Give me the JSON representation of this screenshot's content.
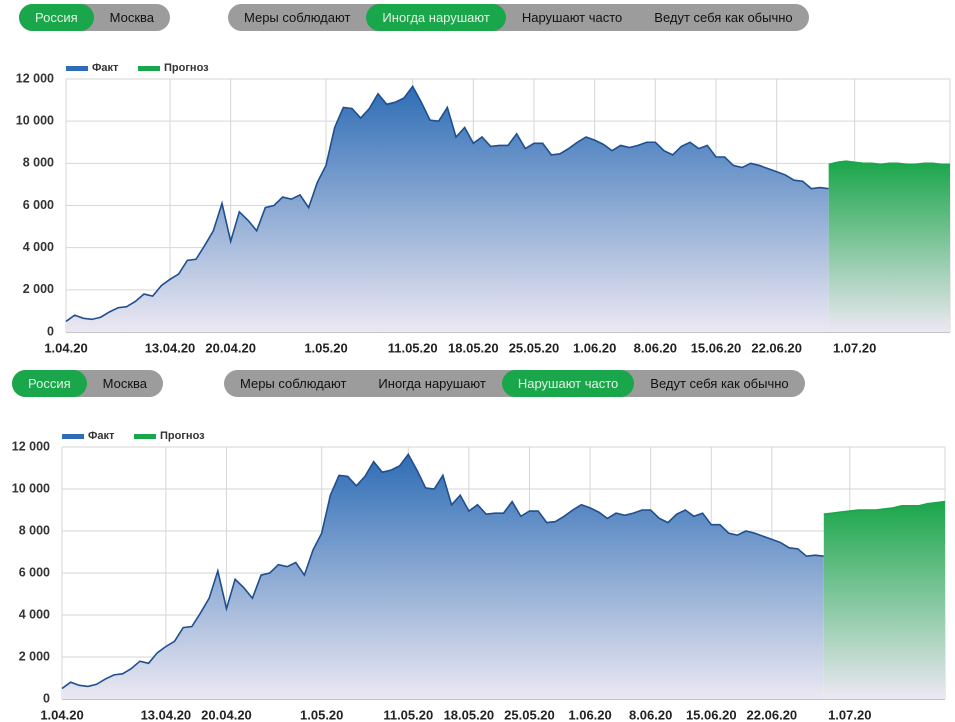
{
  "controls": [
    {
      "regions": [
        "Россия",
        "Москва"
      ],
      "region_active": 0,
      "scenarios": [
        "Меры соблюдают",
        "Иногда нарушают",
        "Нарушают часто",
        "Ведут себя как обычно"
      ],
      "scenario_active": 1
    },
    {
      "regions": [
        "Россия",
        "Москва"
      ],
      "region_active": 0,
      "scenarios": [
        "Меры соблюдают",
        "Иногда нарушают",
        "Нарушают часто",
        "Ведут себя как обычно"
      ],
      "scenario_active": 2
    }
  ],
  "chart_data": [
    {
      "type": "area",
      "categories": [
        "1.04.20",
        null,
        null,
        null,
        null,
        null,
        null,
        null,
        null,
        null,
        null,
        null,
        "13.04.20",
        null,
        null,
        null,
        null,
        null,
        null,
        "20.04.20",
        null,
        null,
        null,
        null,
        null,
        null,
        null,
        null,
        null,
        null,
        "1.05.20",
        null,
        null,
        null,
        null,
        null,
        null,
        null,
        null,
        null,
        "11.05.20",
        null,
        null,
        null,
        null,
        null,
        null,
        "18.05.20",
        null,
        null,
        null,
        null,
        null,
        null,
        "25.05.20",
        null,
        null,
        null,
        null,
        null,
        null,
        "1.06.20",
        null,
        null,
        null,
        null,
        null,
        null,
        "8.06.20",
        null,
        null,
        null,
        null,
        null,
        null,
        "15.06.20",
        null,
        null,
        null,
        null,
        null,
        null,
        "22.06.20",
        null,
        null,
        null,
        null,
        null,
        null,
        null,
        null,
        "1.07.20",
        null,
        null,
        null,
        null,
        null,
        null,
        null,
        null,
        null,
        null,
        null
      ],
      "series": [
        {
          "name": "Факт",
          "color": "#2e6db5",
          "values": [
            500,
            800,
            650,
            600,
            700,
            950,
            1150,
            1200,
            1450,
            1800,
            1700,
            2200,
            2500,
            2750,
            3400,
            3450,
            4100,
            4800,
            6100,
            4300,
            5700,
            5300,
            4800,
            5900,
            6000,
            6400,
            6300,
            6500,
            5900,
            7100,
            7900,
            9700,
            10650,
            10600,
            10150,
            10600,
            11300,
            10800,
            10900,
            11100,
            11650,
            10900,
            10050,
            10000,
            10650,
            9250,
            9700,
            8950,
            9250,
            8800,
            8850,
            8850,
            9400,
            8700,
            8950,
            8950,
            8400,
            8450,
            8700,
            9000,
            9250,
            9100,
            8900,
            8600,
            8850,
            8750,
            8850,
            9000,
            9000,
            8600,
            8400,
            8800,
            9000,
            8700,
            8850,
            8300,
            8300,
            7900,
            7800,
            8000,
            7900,
            7750,
            7600,
            7450,
            7200,
            7150,
            6800,
            6850,
            6800,
            null,
            null,
            null,
            null,
            null,
            null,
            null,
            null,
            null,
            null,
            null,
            null,
            null,
            null
          ]
        },
        {
          "name": "Прогноз",
          "color": "#1aa64a",
          "values": [
            null,
            null,
            null,
            null,
            null,
            null,
            null,
            null,
            null,
            null,
            null,
            null,
            null,
            null,
            null,
            null,
            null,
            null,
            null,
            null,
            null,
            null,
            null,
            null,
            null,
            null,
            null,
            null,
            null,
            null,
            null,
            null,
            null,
            null,
            null,
            null,
            null,
            null,
            null,
            null,
            null,
            null,
            null,
            null,
            null,
            null,
            null,
            null,
            null,
            null,
            null,
            null,
            null,
            null,
            null,
            null,
            null,
            null,
            null,
            null,
            null,
            null,
            null,
            null,
            null,
            null,
            null,
            null,
            null,
            null,
            null,
            null,
            null,
            null,
            null,
            null,
            null,
            null,
            null,
            null,
            null,
            null,
            null,
            null,
            null,
            null,
            null,
            null,
            7950,
            8050,
            8100,
            8050,
            8000,
            8000,
            7950,
            8000,
            8000,
            7950,
            7950,
            8000,
            8000,
            7950,
            7950
          ]
        }
      ],
      "ylim": [
        0,
        12000
      ],
      "yticks": [
        0,
        {
          "value": 2000,
          "label": "2 000"
        },
        {
          "value": 4000,
          "label": "4 000"
        },
        {
          "value": 6000,
          "label": "6 000"
        },
        {
          "value": 8000,
          "label": "8 000"
        },
        {
          "value": 10000,
          "label": "10 000"
        },
        {
          "value": 12000,
          "label": "12 000"
        }
      ],
      "grid": true,
      "legend": "upper left"
    },
    {
      "type": "area",
      "categories": [
        "1.04.20",
        null,
        null,
        null,
        null,
        null,
        null,
        null,
        null,
        null,
        null,
        null,
        "13.04.20",
        null,
        null,
        null,
        null,
        null,
        null,
        "20.04.20",
        null,
        null,
        null,
        null,
        null,
        null,
        null,
        null,
        null,
        null,
        "1.05.20",
        null,
        null,
        null,
        null,
        null,
        null,
        null,
        null,
        null,
        "11.05.20",
        null,
        null,
        null,
        null,
        null,
        null,
        "18.05.20",
        null,
        null,
        null,
        null,
        null,
        null,
        "25.05.20",
        null,
        null,
        null,
        null,
        null,
        null,
        "1.06.20",
        null,
        null,
        null,
        null,
        null,
        null,
        "8.06.20",
        null,
        null,
        null,
        null,
        null,
        null,
        "15.06.20",
        null,
        null,
        null,
        null,
        null,
        null,
        "22.06.20",
        null,
        null,
        null,
        null,
        null,
        null,
        null,
        null,
        "1.07.20",
        null,
        null,
        null,
        null,
        null,
        null,
        null,
        null,
        null,
        null,
        null
      ],
      "series": [
        {
          "name": "Факт",
          "color": "#2e6db5",
          "values": [
            500,
            800,
            650,
            600,
            700,
            950,
            1150,
            1200,
            1450,
            1800,
            1700,
            2200,
            2500,
            2750,
            3400,
            3450,
            4100,
            4800,
            6100,
            4300,
            5700,
            5300,
            4800,
            5900,
            6000,
            6400,
            6300,
            6500,
            5900,
            7100,
            7900,
            9700,
            10650,
            10600,
            10150,
            10600,
            11300,
            10800,
            10900,
            11100,
            11650,
            10900,
            10050,
            10000,
            10650,
            9250,
            9700,
            8950,
            9250,
            8800,
            8850,
            8850,
            9400,
            8700,
            8950,
            8950,
            8400,
            8450,
            8700,
            9000,
            9250,
            9100,
            8900,
            8600,
            8850,
            8750,
            8850,
            9000,
            9000,
            8600,
            8400,
            8800,
            9000,
            8700,
            8850,
            8300,
            8300,
            7900,
            7800,
            8000,
            7900,
            7750,
            7600,
            7450,
            7200,
            7150,
            6800,
            6850,
            6800,
            null,
            null,
            null,
            null,
            null,
            null,
            null,
            null,
            null,
            null,
            null,
            null,
            null,
            null
          ]
        },
        {
          "name": "Прогноз",
          "color": "#1aa64a",
          "values": [
            null,
            null,
            null,
            null,
            null,
            null,
            null,
            null,
            null,
            null,
            null,
            null,
            null,
            null,
            null,
            null,
            null,
            null,
            null,
            null,
            null,
            null,
            null,
            null,
            null,
            null,
            null,
            null,
            null,
            null,
            null,
            null,
            null,
            null,
            null,
            null,
            null,
            null,
            null,
            null,
            null,
            null,
            null,
            null,
            null,
            null,
            null,
            null,
            null,
            null,
            null,
            null,
            null,
            null,
            null,
            null,
            null,
            null,
            null,
            null,
            null,
            null,
            null,
            null,
            null,
            null,
            null,
            null,
            null,
            null,
            null,
            null,
            null,
            null,
            null,
            null,
            null,
            null,
            null,
            null,
            null,
            null,
            null,
            null,
            null,
            null,
            null,
            null,
            8800,
            8850,
            8900,
            8950,
            9000,
            9000,
            9000,
            9050,
            9100,
            9200,
            9200,
            9200,
            9300,
            9350,
            9400
          ]
        }
      ],
      "ylim": [
        0,
        12000
      ],
      "yticks": [
        0,
        {
          "value": 2000,
          "label": "2 000"
        },
        {
          "value": 4000,
          "label": "4 000"
        },
        {
          "value": 6000,
          "label": "6 000"
        },
        {
          "value": 8000,
          "label": "8 000"
        },
        {
          "value": 10000,
          "label": "10 000"
        },
        {
          "value": 12000,
          "label": "12 000"
        }
      ],
      "grid": true,
      "legend": "upper left"
    }
  ]
}
